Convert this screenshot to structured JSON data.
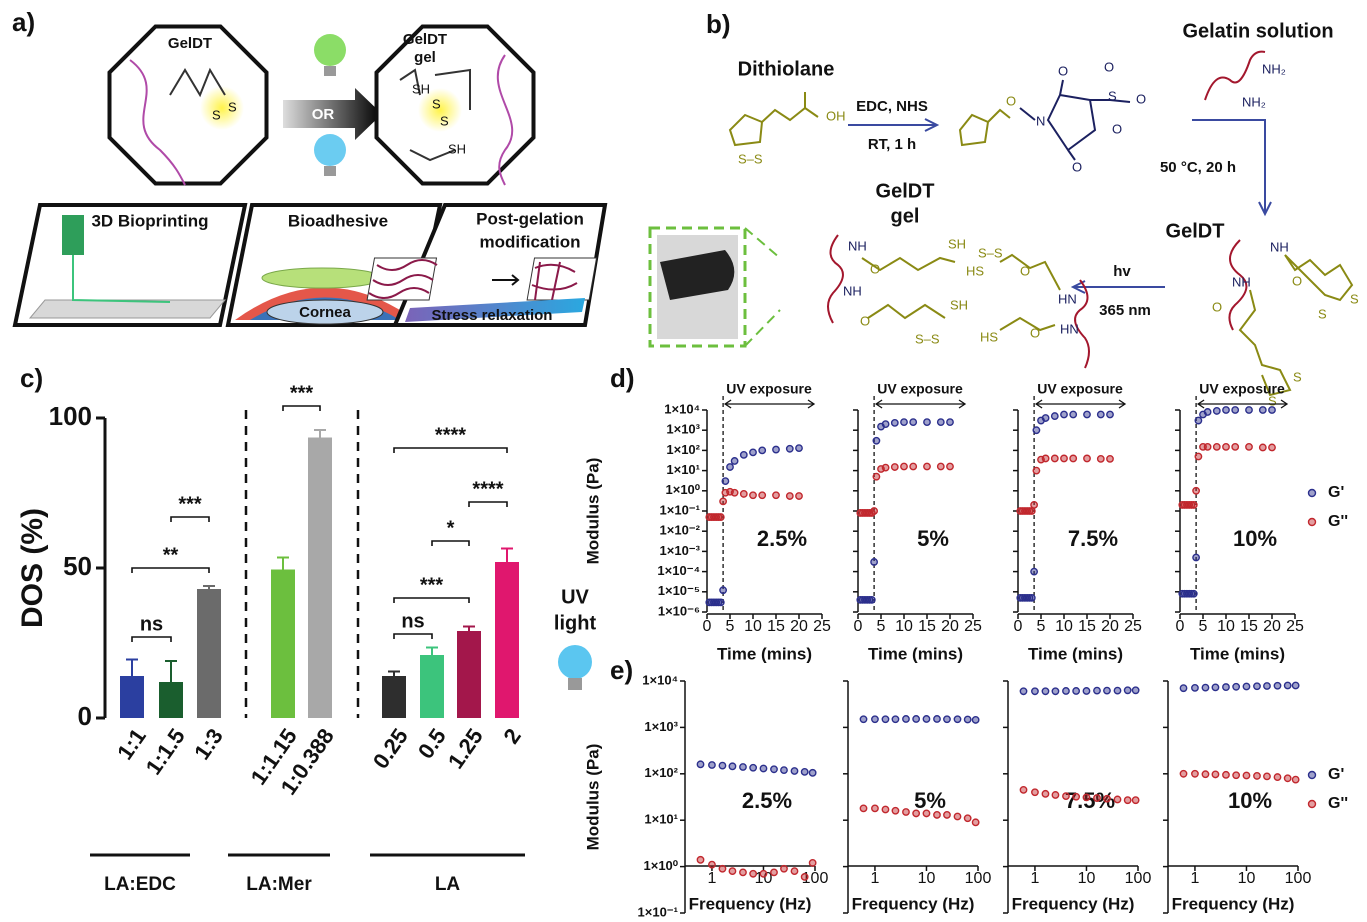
{
  "panel_a": {
    "label": "a)",
    "octagon_left": "GelDT",
    "switch": "OR",
    "octagon_right": [
      "GelDT",
      "gel"
    ],
    "applications": [
      "3D Bioprinting",
      "Bioadhesive",
      [
        "Post-gelation",
        "modification"
      ]
    ],
    "cornea": "Cornea",
    "stress": "Stress relaxation",
    "atoms": [
      "S",
      "S",
      "SH",
      "S",
      "S",
      "SH"
    ]
  },
  "panel_b": {
    "label": "b)",
    "dithiolane": "Dithiolane",
    "step1": [
      "EDC, NHS",
      "RT, 1 h"
    ],
    "gelatin": "Gelatin solution",
    "step2": "50 °C, 20 h",
    "geldt": "GelDT",
    "gel": [
      "GelDT",
      "gel"
    ],
    "step3": [
      "hv",
      "365 nm"
    ],
    "atoms": [
      "OH",
      "S–S",
      "O",
      "N",
      "O",
      "O",
      "S",
      "O",
      "O",
      "O",
      "NH₂",
      "NH₂",
      "NH",
      "O",
      "NH",
      "O",
      "S",
      "S",
      "S",
      "S",
      "NH",
      "O",
      "NH",
      "O",
      "SH",
      "S–S",
      "HS",
      "O",
      "HN",
      "SH",
      "S–S",
      "HS",
      "O",
      "HN"
    ]
  },
  "chart_data": [
    {
      "type": "bar",
      "label": "c)",
      "ylabel": "DOS (%)",
      "categories": [
        "1:1",
        "1:1.5",
        "1:3",
        "1:1.15",
        "1:0.388",
        "0.25",
        "0.5",
        "1.25",
        "2"
      ],
      "values": [
        14,
        12,
        43,
        49.5,
        93.5,
        14,
        21,
        29,
        52
      ],
      "errors": [
        5.5,
        7,
        1,
        4,
        2.5,
        1.5,
        2.5,
        1.5,
        4.5
      ],
      "colors": [
        "#2b3fa0",
        "#1a5e2e",
        "#6b6b6b",
        "#6cbf3e",
        "#a8a8a8",
        "#2e2e2e",
        "#3cc47c",
        "#a3174b",
        "#e0176e"
      ],
      "groups": [
        "LA:EDC",
        "LA:Mer",
        "LA"
      ],
      "significance": [
        "ns",
        "**",
        "***",
        "***",
        "ns",
        "***",
        "*",
        "****",
        "****"
      ],
      "ylim": [
        0,
        100
      ],
      "yticks": [
        0,
        50,
        100
      ],
      "side_note": [
        "UV",
        "light"
      ]
    },
    {
      "type": "scatter",
      "label": "d)",
      "ylabel": "Modulus (Pa)",
      "xlabel": "Time (mins)",
      "annotation": "UV exposure",
      "log_y": true,
      "xlim": [
        0,
        25
      ],
      "xticks": [
        0,
        5,
        10,
        15,
        20,
        25
      ],
      "ylim": [
        1e-06,
        10000
      ],
      "yticks": [
        {
          "value": 1e-06,
          "label": "1×10⁻⁶"
        },
        {
          "value": 1e-05,
          "label": "1×10⁻⁵"
        },
        {
          "value": 0.0001,
          "label": "1×10⁻⁴"
        },
        {
          "value": 0.001,
          "label": "1×10⁻³"
        },
        {
          "value": 0.01,
          "label": "1×10⁻²"
        },
        {
          "value": 0.1,
          "label": "1×10⁻¹"
        },
        {
          "value": 1,
          "label": "1×10⁰"
        },
        {
          "value": 10,
          "label": "1×10¹"
        },
        {
          "value": 100,
          "label": "1×10²"
        },
        {
          "value": 1000,
          "label": "1×10³"
        },
        {
          "value": 10000,
          "label": "1×10⁴"
        }
      ],
      "x": [
        0.5,
        1,
        1.5,
        2,
        2.5,
        3,
        3.5,
        4,
        5,
        6,
        8,
        10,
        12,
        15,
        18,
        20
      ],
      "series": [
        {
          "name": "G'",
          "color": "#2b2f8c"
        },
        {
          "name": "G''",
          "color": "#c1272d"
        }
      ],
      "facets": [
        {
          "label": "2.5%",
          "uv_onset": 3.5,
          "values": [
            [
              3e-06,
              3e-06,
              3e-06,
              3e-06,
              3e-06,
              3e-06,
              1.2e-05,
              3,
              15,
              30,
              60,
              80,
              100,
              110,
              120,
              130
            ],
            [
              0.05,
              0.05,
              0.05,
              0.05,
              0.05,
              0.05,
              0.3,
              0.8,
              0.9,
              0.8,
              0.7,
              0.6,
              0.6,
              0.6,
              0.55,
              0.55
            ]
          ]
        },
        {
          "label": "5%",
          "uv_onset": 3.5,
          "values": [
            [
              4e-06,
              4e-06,
              4e-06,
              4e-06,
              4e-06,
              4e-06,
              0.0003,
              300,
              1500,
              2000,
              2300,
              2500,
              2500,
              2500,
              2500,
              2500
            ],
            [
              0.08,
              0.08,
              0.08,
              0.08,
              0.08,
              0.08,
              0.1,
              5,
              12,
              14,
              15,
              16,
              16,
              16,
              16,
              16
            ]
          ]
        },
        {
          "label": "7.5%",
          "uv_onset": 3.5,
          "values": [
            [
              5e-06,
              5e-06,
              5e-06,
              5e-06,
              5e-06,
              5e-06,
              0.0001,
              1000,
              3000,
              4000,
              5000,
              6000,
              6000,
              6000,
              6000,
              6000
            ],
            [
              0.1,
              0.1,
              0.1,
              0.1,
              0.1,
              0.1,
              0.2,
              10,
              35,
              40,
              40,
              40,
              40,
              40,
              38,
              38
            ]
          ]
        },
        {
          "label": "10%",
          "uv_onset": 3.5,
          "values": [
            [
              8e-06,
              8e-06,
              8e-06,
              8e-06,
              8e-06,
              8e-06,
              0.0005,
              3000,
              6000,
              8000,
              9000,
              10000,
              10000,
              10000,
              10000,
              10000
            ],
            [
              0.2,
              0.2,
              0.2,
              0.2,
              0.2,
              0.2,
              1,
              50,
              150,
              150,
              150,
              150,
              150,
              150,
              140,
              140
            ]
          ]
        }
      ]
    },
    {
      "type": "scatter",
      "label": "e)",
      "ylabel": "Modulus (Pa)",
      "xlabel": "Frequency (Hz)",
      "log_x": true,
      "log_y": true,
      "xlim": [
        0.3,
        100
      ],
      "xticks": [
        1,
        10,
        100
      ],
      "ylim": [
        0.1,
        10000
      ],
      "yticks": [
        {
          "value": 0.1,
          "label": "1×10⁻¹"
        },
        {
          "value": 1,
          "label": "1×10⁰"
        },
        {
          "value": 10,
          "label": "1×10¹"
        },
        {
          "value": 100,
          "label": "1×10²"
        },
        {
          "value": 1000,
          "label": "1×10³"
        },
        {
          "value": 10000,
          "label": "1×10⁴"
        }
      ],
      "x": [
        0.6,
        1,
        1.6,
        2.5,
        4,
        6.3,
        10,
        16,
        25,
        40,
        63,
        90
      ],
      "series": [
        {
          "name": "G'",
          "color": "#2b2f8c"
        },
        {
          "name": "G''",
          "color": "#c1272d"
        }
      ],
      "facets": [
        {
          "label": "2.5%",
          "values": [
            [
              160,
              155,
              150,
              145,
              140,
              135,
              130,
              125,
              120,
              115,
              110,
              105
            ],
            [
              1.4,
              1.1,
              0.9,
              0.8,
              0.75,
              0.7,
              0.7,
              0.75,
              0.9,
              0.8,
              0.6,
              1.2
            ]
          ]
        },
        {
          "label": "5%",
          "values": [
            [
              1500,
              1500,
              1500,
              1500,
              1520,
              1520,
              1520,
              1520,
              1500,
              1500,
              1480,
              1450
            ],
            [
              18,
              18,
              17,
              16,
              15,
              14,
              14,
              13,
              13,
              12,
              11,
              9
            ]
          ]
        },
        {
          "label": "7.5%",
          "values": [
            [
              6000,
              6000,
              6000,
              6000,
              6100,
              6100,
              6100,
              6200,
              6200,
              6200,
              6300,
              6300
            ],
            [
              45,
              40,
              37,
              35,
              33,
              32,
              31,
              30,
              29,
              28,
              27,
              27
            ]
          ]
        },
        {
          "label": "10%",
          "values": [
            [
              7000,
              7100,
              7200,
              7300,
              7400,
              7500,
              7600,
              7700,
              7800,
              7900,
              8000,
              8000
            ],
            [
              100,
              100,
              98,
              97,
              95,
              93,
              92,
              90,
              88,
              85,
              80,
              75
            ]
          ]
        }
      ]
    }
  ]
}
